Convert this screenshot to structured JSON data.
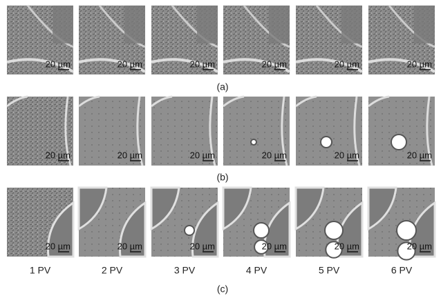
{
  "rows": [
    {
      "label": "(a)",
      "panels": [
        "20 µm",
        "20 µm",
        "20 µm",
        "20 µm",
        "20 µm",
        "20 µm"
      ]
    },
    {
      "label": "(b)",
      "panels": [
        "20 µm",
        "20 µm",
        "20 µm",
        "20 µm",
        "20 µm",
        "20 µm"
      ]
    },
    {
      "label": "(c)",
      "panels": [
        "20 µm",
        "20 µm",
        "20 µm",
        "20 µm",
        "20 µm",
        "20 µm"
      ]
    }
  ],
  "columns": [
    "1 PV",
    "2 PV",
    "3 PV",
    "4 PV",
    "5 PV",
    "6 PV"
  ]
}
